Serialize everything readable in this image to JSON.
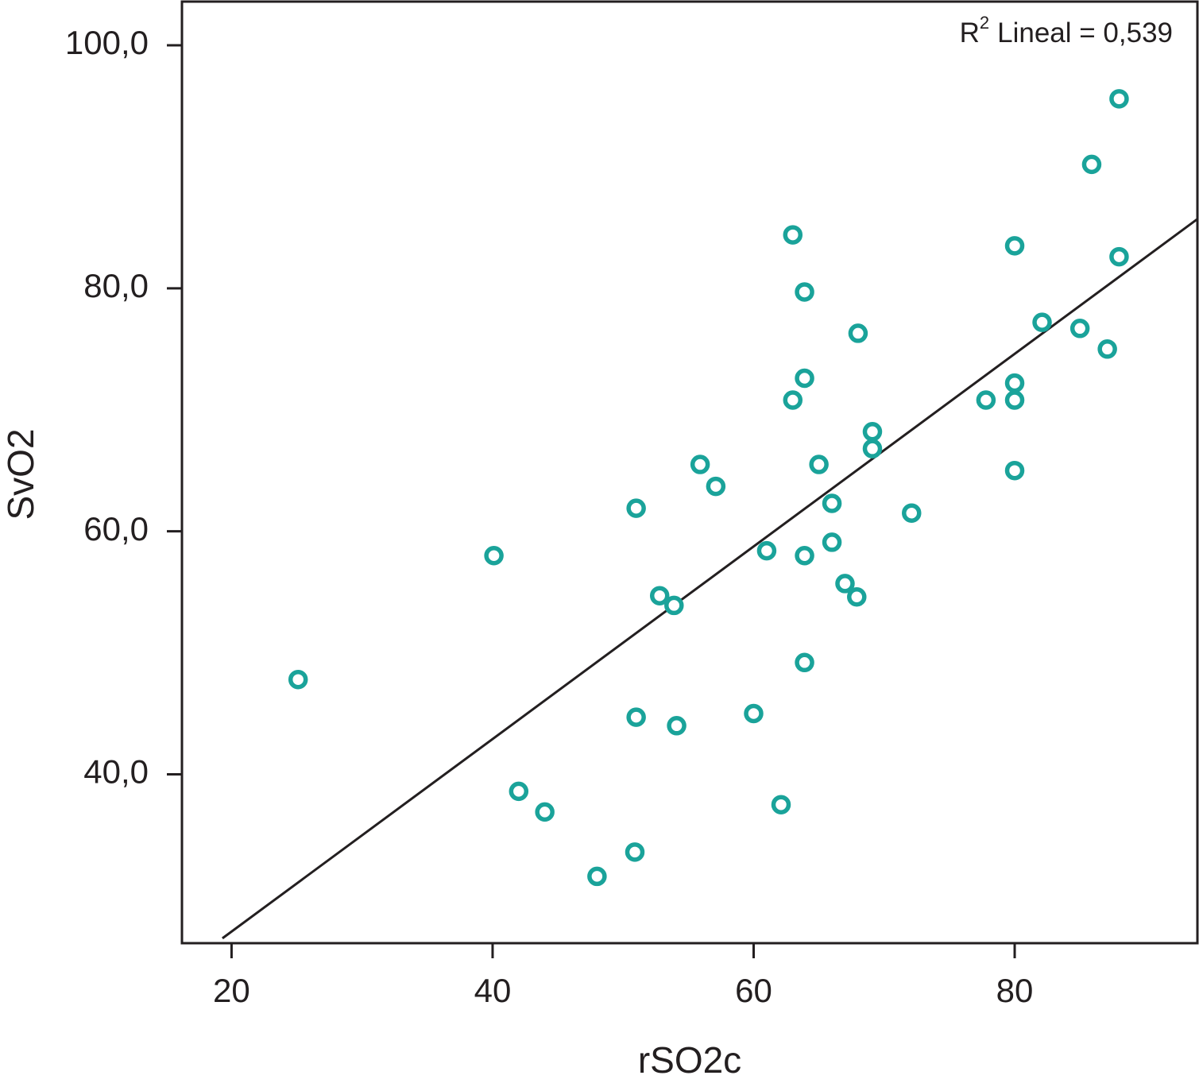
{
  "chart_data": {
    "type": "scatter",
    "x_label": "rSO2c",
    "y_label": "SvO2",
    "annotation": [
      "R",
      "2",
      "Lineal = 0,539"
    ],
    "xlim": [
      16.2,
      94.0
    ],
    "ylim": [
      26.1,
      103.6
    ],
    "xticks": [
      20,
      40,
      60,
      80
    ],
    "yticks": [
      {
        "value": 40,
        "label": "40,0"
      },
      {
        "value": 60,
        "label": "60,0"
      },
      {
        "value": 80,
        "label": "80,0"
      },
      {
        "value": 100,
        "label": "100,0"
      }
    ],
    "color": "#1aa39a",
    "line_color": "#231f20",
    "x": [
      25.1,
      40.1,
      42.0,
      44.0,
      48.0,
      50.9,
      51.0,
      51.0,
      52.8,
      53.9,
      54.1,
      55.9,
      57.1,
      60.0,
      61.0,
      62.1,
      63.0,
      63.0,
      63.9,
      63.9,
      63.9,
      63.9,
      65.0,
      66.0,
      66.0,
      67.0,
      67.9,
      68.0,
      69.1,
      69.1,
      72.1,
      77.8,
      80.0,
      80.0,
      80.0,
      80.0,
      82.1,
      85.0,
      85.9,
      87.1,
      88.0,
      88.0
    ],
    "values": [
      47.8,
      58.0,
      38.6,
      36.9,
      31.6,
      33.6,
      44.7,
      61.9,
      54.7,
      53.9,
      44.0,
      65.5,
      63.7,
      45.0,
      58.4,
      37.5,
      84.4,
      70.8,
      79.7,
      72.6,
      58.0,
      49.2,
      65.5,
      62.3,
      59.1,
      55.7,
      54.6,
      76.3,
      68.2,
      66.8,
      61.5,
      70.8,
      83.5,
      72.2,
      70.8,
      65.0,
      77.2,
      76.7,
      90.2,
      75.0,
      95.6,
      82.6
    ],
    "trendline": {
      "x": [
        19.3,
        94.0
      ],
      "y": [
        26.5,
        85.7
      ]
    }
  }
}
